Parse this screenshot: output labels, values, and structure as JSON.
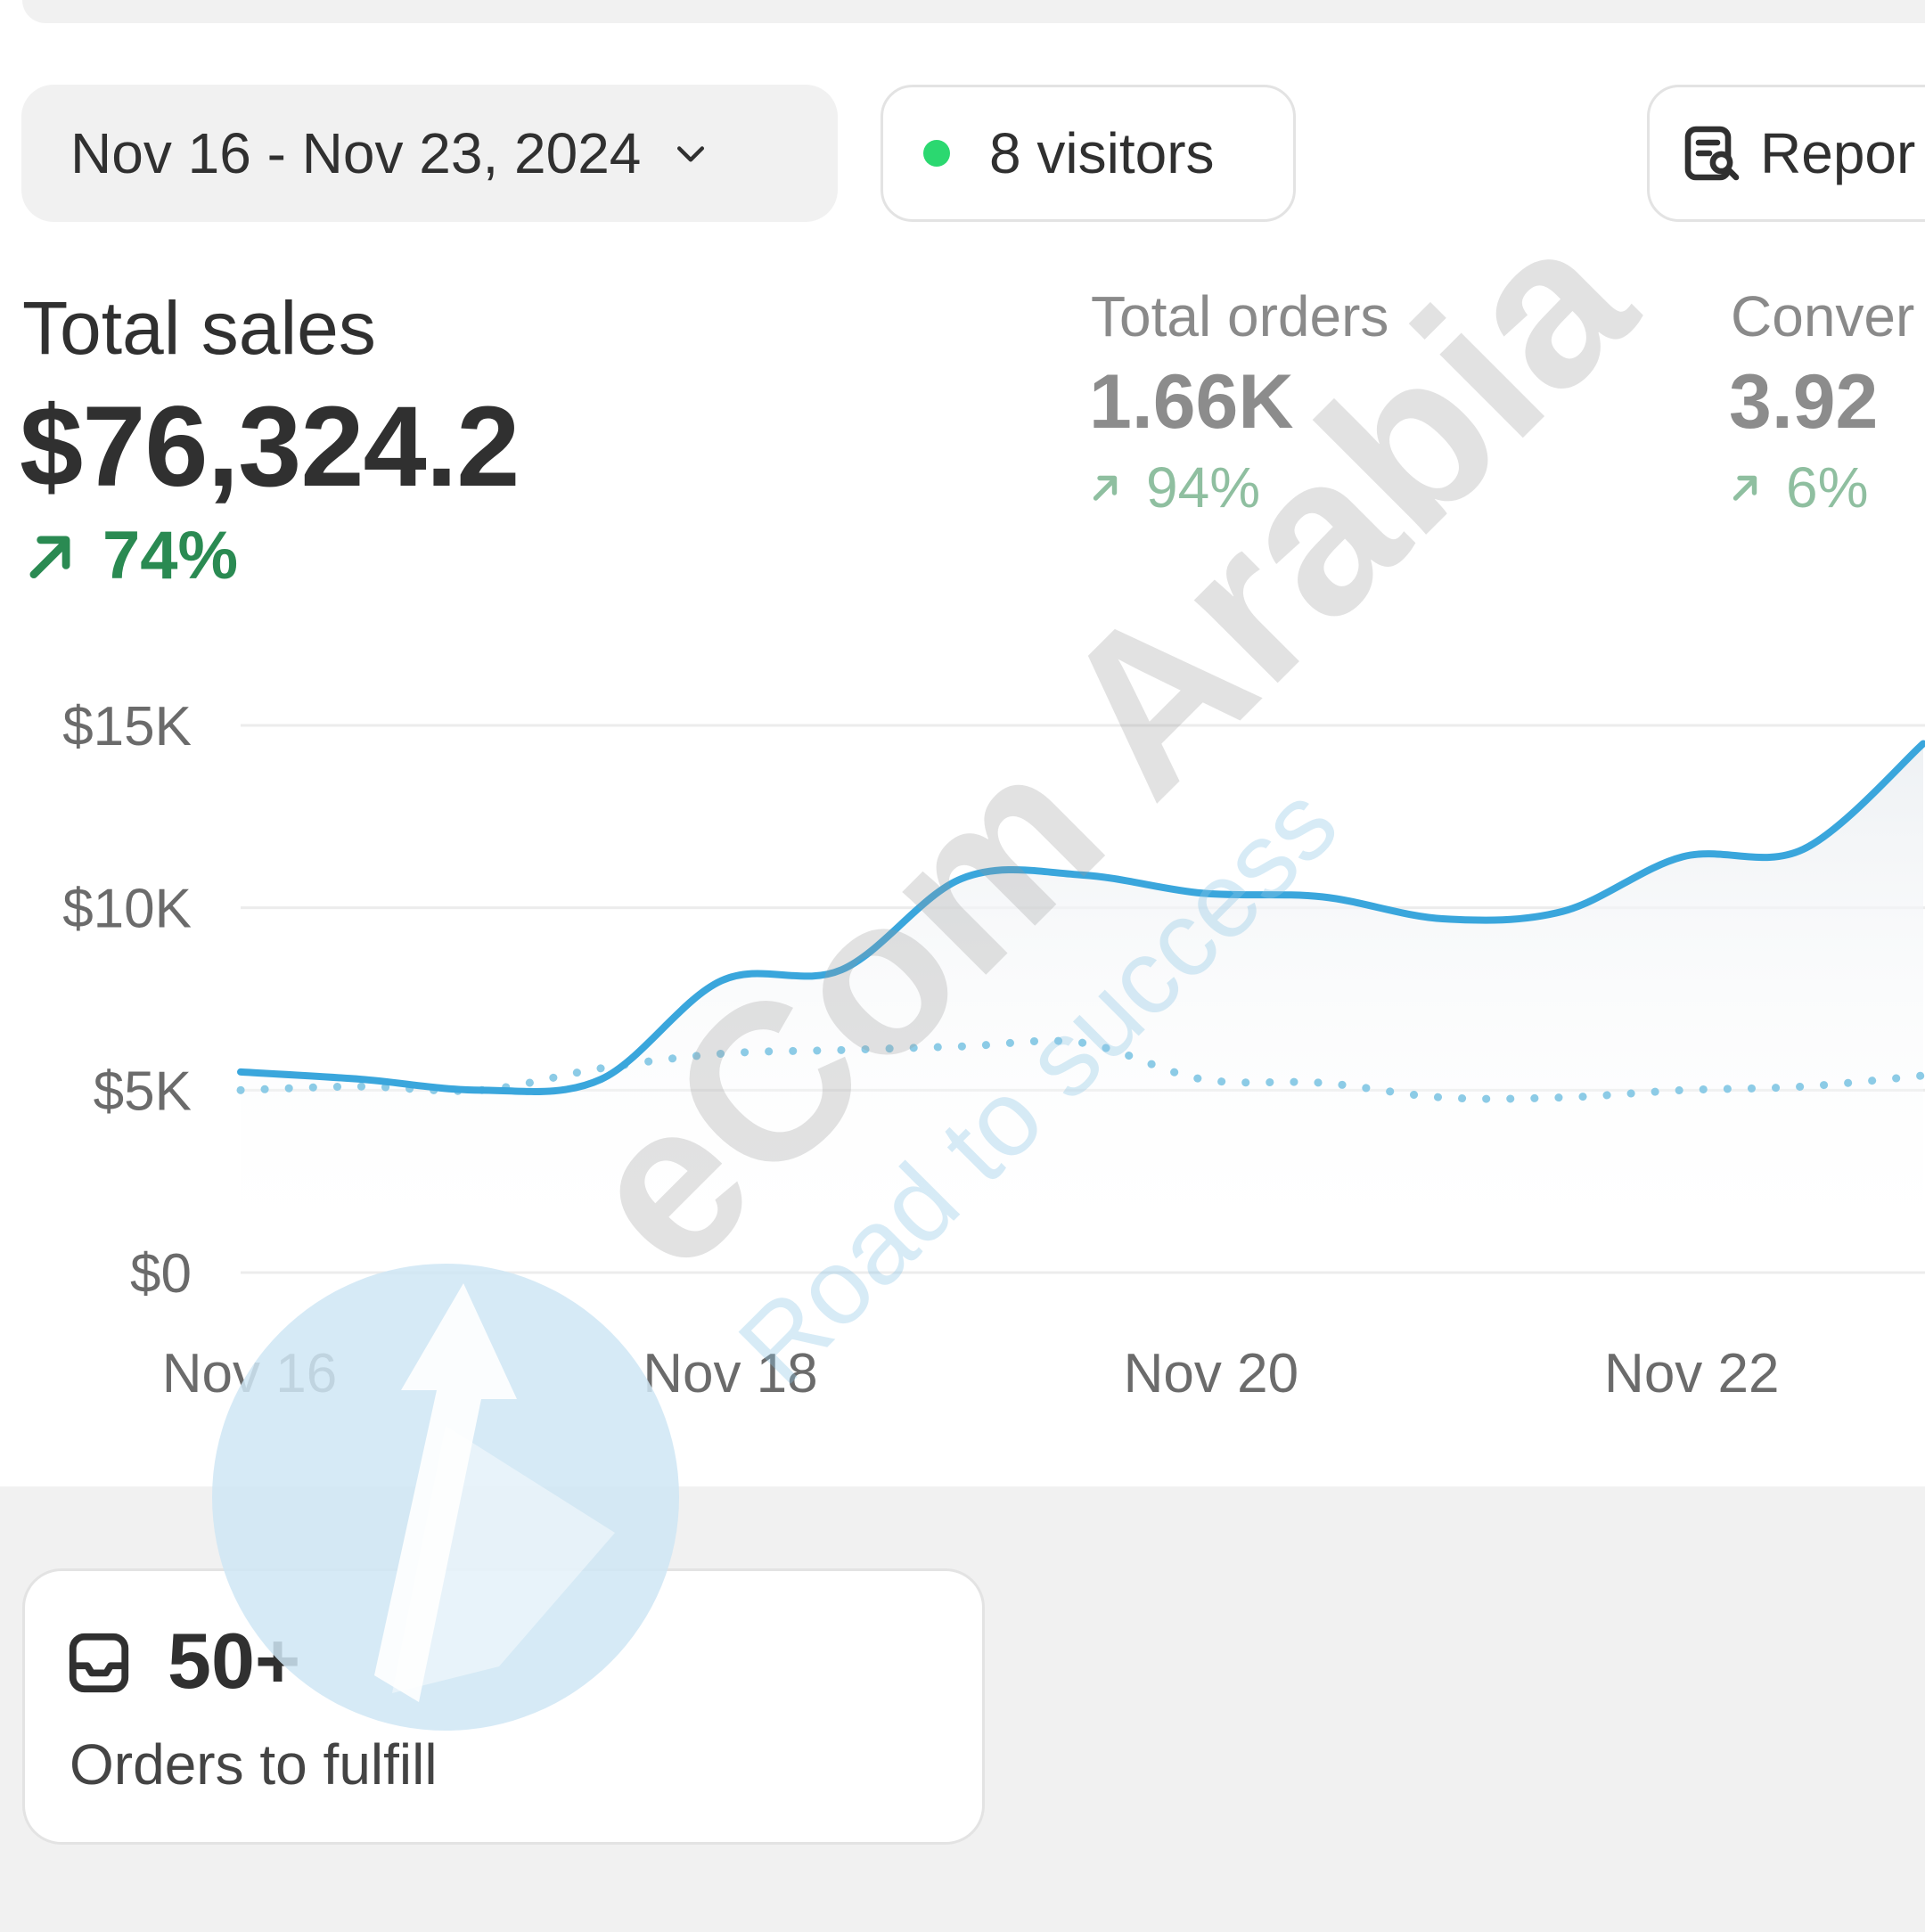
{
  "toolbar": {
    "date_range": "Nov 16 - Nov 23, 2024",
    "visitors_label": "8 visitors",
    "reports_label": "Repor"
  },
  "metrics": {
    "total_sales": {
      "title": "Total sales",
      "value": "$76,324.2",
      "change": "74%"
    },
    "total_orders": {
      "title": "Total orders",
      "value": "1.66K",
      "change": "94%"
    },
    "conversion": {
      "title": "Conver",
      "value": "3.92",
      "change": "6%"
    }
  },
  "chart_data": {
    "type": "line",
    "x": [
      "Nov 16",
      "Nov 16.5",
      "Nov 17",
      "Nov 17.5",
      "Nov 18",
      "Nov 18.5",
      "Nov 19",
      "Nov 19.5",
      "Nov 20",
      "Nov 20.5",
      "Nov 21",
      "Nov 21.5",
      "Nov 22",
      "Nov 22.5",
      "Nov 23"
    ],
    "xticks": [
      "Nov 16",
      "Nov 18",
      "Nov 20",
      "Nov 22"
    ],
    "yticks": [
      "$15K",
      "$10K",
      "$5K",
      "$0"
    ],
    "ylim": [
      0,
      15000
    ],
    "series": [
      {
        "style": "solid",
        "values": [
          5500,
          5300,
          5000,
          5300,
          8000,
          8300,
          10800,
          10900,
          10400,
          10300,
          9700,
          9900,
          11400,
          11600,
          14500
        ]
      },
      {
        "style": "dotted",
        "values": [
          5000,
          5100,
          5000,
          5600,
          6000,
          6100,
          6200,
          6300,
          5300,
          5200,
          4800,
          4800,
          5000,
          5100,
          5400
        ]
      }
    ],
    "colors": {
      "line": "#3aa6dc",
      "dotted": "#8ccbe6",
      "grid": "#ececec"
    },
    "grid": true
  },
  "fulfill_card": {
    "count": "50+",
    "label": "Orders to fulfill"
  },
  "watermark": {
    "brand": "eCom Arabia",
    "tagline": "Road to success"
  }
}
